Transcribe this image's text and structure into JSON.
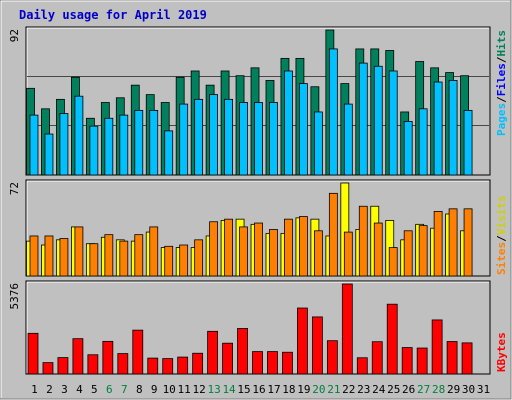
{
  "title": "Daily usage for April 2019",
  "colors": {
    "background": "#c0c0c0",
    "hits": "#00805c",
    "files": "#00c0ff",
    "pages": "#00e0ff",
    "visits": "#ffff00",
    "sites": "#ff8000",
    "kbytes": "#ff0000",
    "weekend": "#008040",
    "weekday": "#000000"
  },
  "legend": {
    "top": [
      {
        "label": "Pages",
        "color": "#00c0ff"
      },
      {
        "label": "/",
        "color": "#000000"
      },
      {
        "label": "Files",
        "color": "#0000ff"
      },
      {
        "label": "/",
        "color": "#000000"
      },
      {
        "label": "Hits",
        "color": "#00805c"
      }
    ],
    "mid": [
      {
        "label": "Sites",
        "color": "#ff8000"
      },
      {
        "label": "/",
        "color": "#000000"
      },
      {
        "label": "Visits",
        "color": "#d0d000"
      }
    ],
    "bottom": [
      {
        "label": "KBytes",
        "color": "#ff0000"
      }
    ]
  },
  "chart_data": {
    "type": "bar",
    "categories": [
      "1",
      "2",
      "3",
      "4",
      "5",
      "6",
      "7",
      "8",
      "9",
      "10",
      "11",
      "12",
      "13",
      "14",
      "15",
      "16",
      "17",
      "18",
      "19",
      "20",
      "21",
      "22",
      "23",
      "24",
      "25",
      "26",
      "27",
      "28",
      "29",
      "30",
      "31"
    ],
    "weekend_days": [
      "6",
      "7",
      "13",
      "14",
      "20",
      "21",
      "27",
      "28"
    ],
    "panels": [
      {
        "name": "hits-files-pages",
        "ymax_label": "92",
        "ymax": 92,
        "series": [
          {
            "name": "Hits",
            "values": [
              55,
              42,
              48,
              62,
              36,
              46,
              49,
              57,
              51,
              46,
              62,
              66,
              57,
              66,
              63,
              68,
              60,
              74,
              74,
              56,
              92,
              58,
              80,
              80,
              79,
              40,
              72,
              68,
              65,
              63
            ]
          },
          {
            "name": "Files",
            "values": [
              38,
              26,
              39,
              50,
              31,
              36,
              38,
              41,
              41,
              28,
              45,
              48,
              51,
              48,
              46,
              46,
              46,
              66,
              58,
              40,
              80,
              45,
              71,
              69,
              66,
              34,
              42,
              59,
              60,
              41
            ]
          },
          {
            "name": "Pages",
            "values": [
              38,
              26,
              39,
              50,
              31,
              36,
              38,
              41,
              41,
              28,
              45,
              48,
              51,
              48,
              46,
              46,
              46,
              66,
              58,
              40,
              80,
              45,
              71,
              69,
              66,
              34,
              42,
              59,
              60,
              41
            ]
          }
        ]
      },
      {
        "name": "visits-sites",
        "ymax_label": "72",
        "ymax": 72,
        "series": [
          {
            "name": "Visits",
            "values": [
              27,
              24,
              28,
              38,
              25,
              30,
              28,
              27,
              34,
              22,
              22,
              22,
              31,
              43,
              44,
              40,
              33,
              33,
              45,
              44,
              31,
              72,
              36,
              54,
              43,
              28,
              40,
              37,
              48,
              35
            ]
          },
          {
            "name": "Sites",
            "values": [
              31,
              31,
              29,
              38,
              25,
              32,
              27,
              32,
              38,
              23,
              24,
              28,
              42,
              44,
              38,
              41,
              36,
              44,
              46,
              35,
              64,
              34,
              54,
              41,
              22,
              35,
              39,
              50,
              52,
              52
            ]
          }
        ]
      },
      {
        "name": "kbytes",
        "ymax_label": "5376",
        "ymax": 5376,
        "series": [
          {
            "name": "KBytes",
            "values": [
              2430,
              680,
              980,
              2110,
              1150,
              1950,
              1220,
              2620,
              950,
              920,
              1010,
              1240,
              2550,
              1840,
              2720,
              1340,
              1340,
              1300,
              3940,
              3410,
              1990,
              5376,
              970,
              1930,
              4170,
              1580,
              1550,
              3230,
              1940,
              1860
            ]
          }
        ]
      }
    ]
  }
}
